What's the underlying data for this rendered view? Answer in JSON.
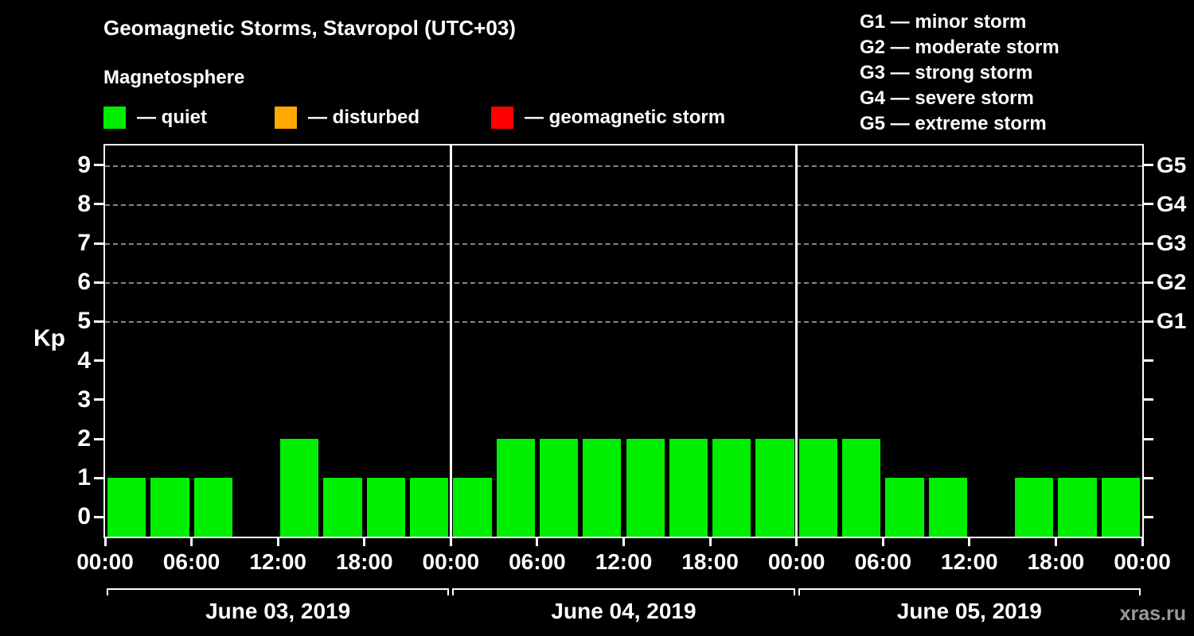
{
  "title": "Geomagnetic Storms, Stavropol (UTC+03)",
  "subtitle": "Magnetosphere",
  "watermark": "xras.ru",
  "legend": {
    "items": [
      {
        "label": "— quiet",
        "color": "#00ee00"
      },
      {
        "label": "— disturbed",
        "color": "#ffa800"
      },
      {
        "label": "— geomagnetic storm",
        "color": "#ff0000"
      }
    ]
  },
  "storm_scale": [
    "G1 — minor storm",
    "G2 — moderate storm",
    "G3 — strong storm",
    "G4 — severe storm",
    "G5 — extreme storm"
  ],
  "chart_data": {
    "type": "bar",
    "title": "Geomagnetic Storms, Stavropol (UTC+03)",
    "ylabel": "Kp",
    "ylim": [
      -0.5,
      9.5
    ],
    "yticks": [
      0,
      1,
      2,
      3,
      4,
      5,
      6,
      7,
      8,
      9
    ],
    "gridlines": [
      5,
      6,
      7,
      8,
      9
    ],
    "right_axis_labels": [
      {
        "kp": 5,
        "label": "G1"
      },
      {
        "kp": 6,
        "label": "G2"
      },
      {
        "kp": 7,
        "label": "G3"
      },
      {
        "kp": 8,
        "label": "G4"
      },
      {
        "kp": 9,
        "label": "G5"
      }
    ],
    "bar_color": "#00ee00",
    "interval_hours": 3,
    "x_tick_labels": [
      "00:00",
      "06:00",
      "12:00",
      "18:00",
      "00:00",
      "06:00",
      "12:00",
      "18:00",
      "00:00",
      "06:00",
      "12:00",
      "18:00",
      "00:00"
    ],
    "days": [
      {
        "date": "June 03, 2019",
        "kp": [
          1,
          1,
          1,
          0,
          2,
          1,
          1,
          1
        ]
      },
      {
        "date": "June 04, 2019",
        "kp": [
          1,
          2,
          2,
          2,
          2,
          2,
          2,
          2
        ]
      },
      {
        "date": "June 05, 2019",
        "kp": [
          2,
          2,
          1,
          1,
          0,
          1,
          1,
          1
        ]
      }
    ]
  }
}
